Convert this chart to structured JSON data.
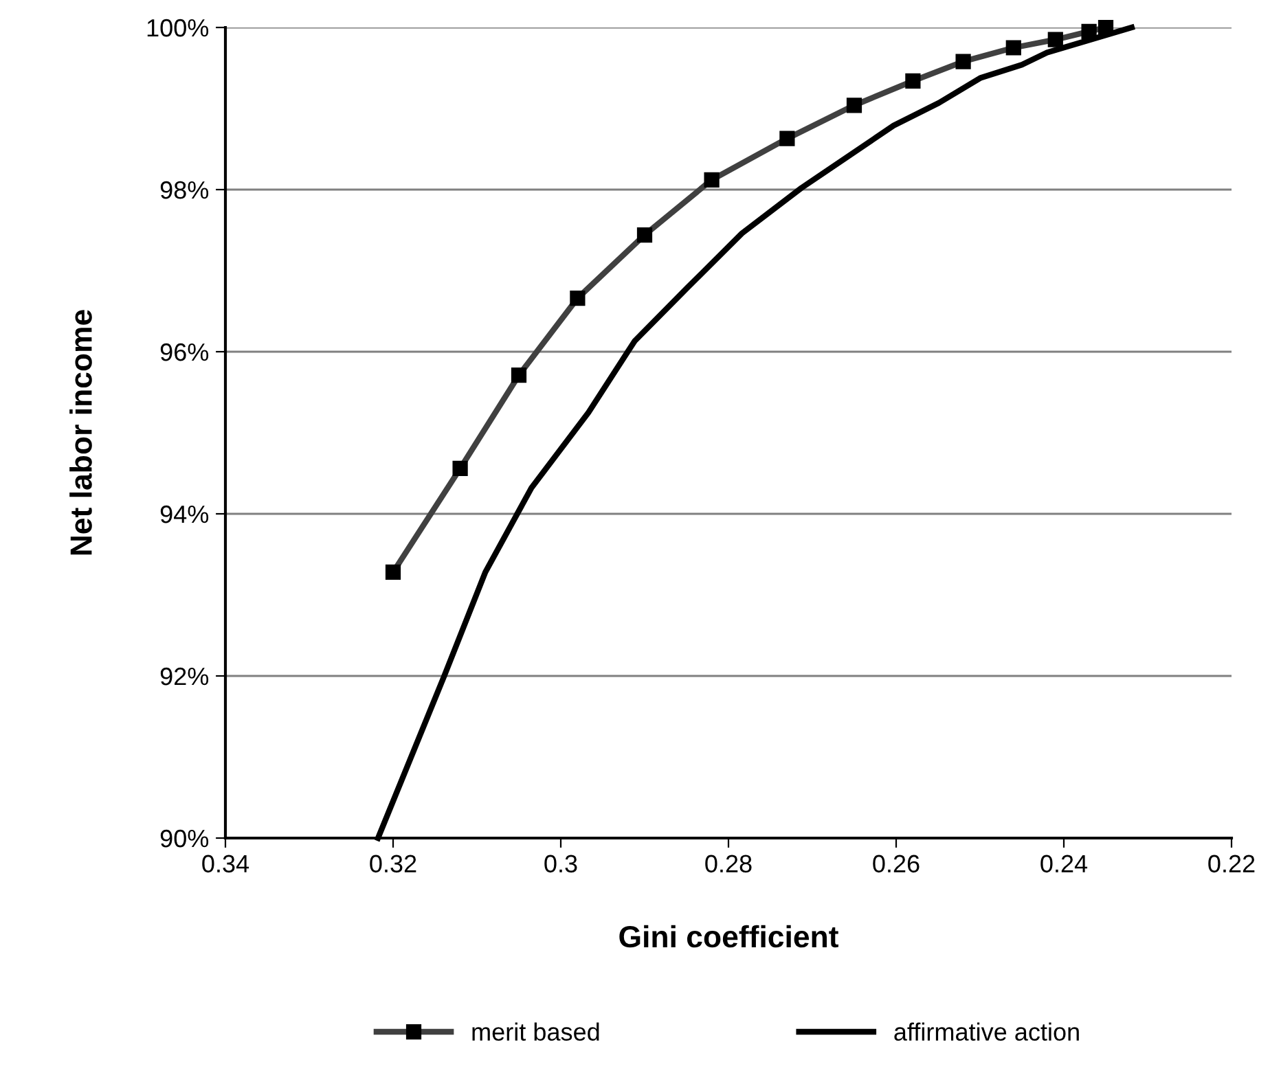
{
  "chart_data": {
    "type": "line",
    "xlabel": "Gini coefficient",
    "ylabel": "Net labor income",
    "xlim": [
      0.34,
      0.22
    ],
    "xticks": [
      0.34,
      0.32,
      0.3,
      0.28,
      0.26,
      0.24,
      0.22
    ],
    "ylim": [
      90,
      100
    ],
    "yticks": [
      {
        "value": 90,
        "label": "90%"
      },
      {
        "value": 92,
        "label": "92%"
      },
      {
        "value": 94,
        "label": "94%"
      },
      {
        "value": 96,
        "label": "96%"
      },
      {
        "value": 98,
        "label": "98%"
      },
      {
        "value": 100,
        "label": "100%"
      }
    ],
    "grid": "y",
    "legend": "bottom",
    "series": [
      {
        "name": "merit based",
        "color": "#404040",
        "marker": "square",
        "x": [
          0.32,
          0.312,
          0.305,
          0.298,
          0.29,
          0.282,
          0.273,
          0.265,
          0.258,
          0.252,
          0.246,
          0.241,
          0.237,
          0.235
        ],
        "values": [
          93.28,
          94.56,
          95.71,
          96.66,
          97.44,
          98.12,
          98.63,
          99.04,
          99.34,
          99.58,
          99.75,
          99.85,
          99.95,
          100.0
        ]
      },
      {
        "name": "affirmative action",
        "color": "#000000",
        "marker": "none",
        "x": [
          0.3218,
          0.3139,
          0.309,
          0.3035,
          0.2967,
          0.2912,
          0.2849,
          0.2784,
          0.2713,
          0.2603,
          0.2549,
          0.2499,
          0.245,
          0.242,
          0.2319
        ],
        "values": [
          90.0,
          92.0,
          93.28,
          94.32,
          95.25,
          96.13,
          96.79,
          97.46,
          98.02,
          98.79,
          99.07,
          99.38,
          99.54,
          99.69,
          100.0
        ]
      }
    ]
  }
}
